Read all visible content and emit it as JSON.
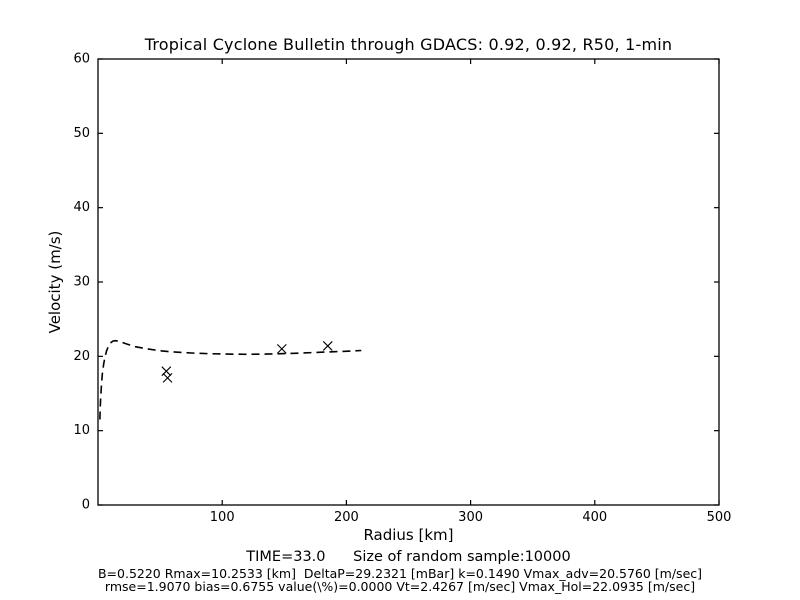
{
  "figure": {
    "title": "Tropical Cyclone Bulletin through GDACS: 0.92, 0.92, R50, 1-min",
    "xlabel": "Radius [km]",
    "ylabel": "Velocity (m/s)",
    "footer": {
      "line1": "TIME=33.0      Size of random sample:10000",
      "line2": "B=0.5220 Rmax=10.2533 [km]  DeltaP=29.2321 [mBar] k=0.1490 Vmax_adv=20.5760 [m/sec]",
      "line3": "rmse=1.9070 bias=0.6755 value(\\%)=0.0000 Vt=2.4267 [m/sec] Vmax_Hol=22.0935 [m/sec]"
    }
  },
  "chart_data": {
    "type": "line",
    "title": "Tropical Cyclone Bulletin through GDACS: 0.92, 0.92, R50, 1-min",
    "xlabel": "Radius [km]",
    "ylabel": "Velocity (m/s)",
    "xlim": [
      0,
      500
    ],
    "ylim": [
      0,
      60
    ],
    "xticks": [
      100,
      200,
      300,
      400,
      500
    ],
    "yticks": [
      0,
      10,
      20,
      30,
      40,
      50,
      60
    ],
    "grid": false,
    "legend": "none",
    "frame_color": "#000000",
    "background_color": "#ffffff",
    "series": [
      {
        "name": "Holland wind profile",
        "style": "dashed-line",
        "color": "#000000",
        "points": [
          [
            1.5,
            11.5
          ],
          [
            1.8,
            13.0
          ],
          [
            2.2,
            14.5
          ],
          [
            2.8,
            16.2
          ],
          [
            3.5,
            17.6
          ],
          [
            4.5,
            18.9
          ],
          [
            5.5,
            19.8
          ],
          [
            7,
            20.8
          ],
          [
            8.5,
            21.4
          ],
          [
            10,
            21.8
          ],
          [
            12,
            22.05
          ],
          [
            14,
            22.1
          ],
          [
            16,
            22.05
          ],
          [
            20,
            21.85
          ],
          [
            25,
            21.55
          ],
          [
            30,
            21.3
          ],
          [
            40,
            21.0
          ],
          [
            50,
            20.75
          ],
          [
            60,
            20.6
          ],
          [
            75,
            20.45
          ],
          [
            90,
            20.35
          ],
          [
            105,
            20.3
          ],
          [
            120,
            20.28
          ],
          [
            135,
            20.3
          ],
          [
            150,
            20.37
          ],
          [
            165,
            20.45
          ],
          [
            180,
            20.55
          ],
          [
            195,
            20.65
          ],
          [
            205,
            20.72
          ],
          [
            212,
            20.78
          ]
        ]
      },
      {
        "name": "bulletin wind radii points",
        "style": "x-markers",
        "color": "#000000",
        "points": [
          [
            55,
            18.0
          ],
          [
            56,
            17.1
          ],
          [
            148,
            21.0
          ],
          [
            185,
            21.4
          ]
        ]
      }
    ],
    "annotations": {
      "time": 33.0,
      "random_sample_size": 10000,
      "B": 0.522,
      "Rmax_km": 10.2533,
      "DeltaP_mBar": 29.2321,
      "k": 0.149,
      "Vmax_adv_msec": 20.576,
      "rmse": 1.907,
      "bias": 0.6755,
      "value_pct": 0.0,
      "Vt_msec": 2.4267,
      "Vmax_Hol_msec": 22.0935
    }
  }
}
